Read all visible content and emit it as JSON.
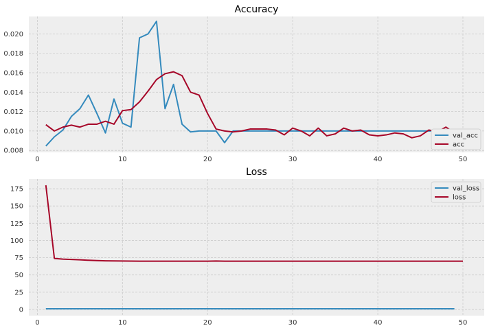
{
  "chart_data": [
    {
      "type": "line",
      "title": "Accuracy",
      "xlabel": "",
      "ylabel": "",
      "xlim": [
        -1,
        52.5
      ],
      "ylim": [
        0.0078,
        0.0218
      ],
      "xticks": [
        0,
        10,
        20,
        30,
        40,
        50
      ],
      "yticks": [
        0.008,
        0.01,
        0.012,
        0.014,
        0.016,
        0.018,
        0.02
      ],
      "ytick_labels": [
        "0.008",
        "0.010",
        "0.012",
        "0.014",
        "0.016",
        "0.018",
        "0.020"
      ],
      "grid": true,
      "legend_position": "lower-right",
      "series": [
        {
          "name": "val_acc",
          "color": "#348abd",
          "x": [
            1,
            2,
            3,
            4,
            5,
            6,
            7,
            8,
            9,
            10,
            11,
            12,
            13,
            14,
            15,
            16,
            17,
            18,
            19,
            20,
            21,
            22,
            23,
            24,
            25,
            26,
            27,
            28,
            29,
            30,
            31,
            32,
            33,
            34,
            35,
            36,
            37,
            38,
            39,
            40,
            41,
            42,
            43,
            44,
            45,
            46,
            47,
            48,
            49
          ],
          "y": [
            0.00845,
            0.0094,
            0.0101,
            0.0115,
            0.0123,
            0.0137,
            0.0118,
            0.0098,
            0.0133,
            0.0108,
            0.0104,
            0.0196,
            0.02,
            0.0213,
            0.0123,
            0.0148,
            0.0107,
            0.0099,
            0.01,
            0.01,
            0.01,
            0.0088,
            0.01,
            0.01,
            0.01,
            0.01,
            0.01,
            0.01,
            0.01,
            0.01,
            0.01,
            0.01,
            0.01,
            0.01,
            0.01,
            0.01,
            0.01,
            0.01,
            0.01,
            0.01,
            0.01,
            0.01,
            0.01,
            0.01,
            0.01,
            0.01,
            0.01,
            0.01,
            0.01
          ]
        },
        {
          "name": "acc",
          "color": "#a60628",
          "x": [
            1,
            2,
            3,
            4,
            5,
            6,
            7,
            8,
            9,
            10,
            11,
            12,
            13,
            14,
            15,
            16,
            17,
            18,
            19,
            20,
            21,
            22,
            23,
            24,
            25,
            26,
            27,
            28,
            29,
            30,
            31,
            32,
            33,
            34,
            35,
            36,
            37,
            38,
            39,
            40,
            41,
            42,
            43,
            44,
            45,
            46,
            47,
            48,
            49,
            50
          ],
          "y": [
            0.01065,
            0.01,
            0.0104,
            0.0106,
            0.0104,
            0.0107,
            0.0107,
            0.011,
            0.0107,
            0.0121,
            0.0122,
            0.013,
            0.0141,
            0.0153,
            0.0159,
            0.0161,
            0.0157,
            0.014,
            0.0137,
            0.0118,
            0.0102,
            0.01,
            0.0099,
            0.01,
            0.0102,
            0.0102,
            0.0102,
            0.0101,
            0.0096,
            0.0103,
            0.01,
            0.0095,
            0.0103,
            0.0095,
            0.0097,
            0.0103,
            0.01,
            0.0101,
            0.0096,
            0.0095,
            0.0096,
            0.0098,
            0.0097,
            0.0093,
            0.0095,
            0.0101,
            0.0099,
            0.0104,
            0.0098,
            0.0099
          ]
        }
      ]
    },
    {
      "type": "line",
      "title": "Loss",
      "xlabel": "",
      "ylabel": "",
      "xlim": [
        -1,
        52.5
      ],
      "ylim": [
        -9,
        189
      ],
      "xticks": [
        0,
        10,
        20,
        30,
        40,
        50
      ],
      "yticks": [
        0,
        25,
        50,
        75,
        100,
        125,
        150,
        175
      ],
      "ytick_labels": [
        "0",
        "25",
        "50",
        "75",
        "100",
        "125",
        "150",
        "175"
      ],
      "grid": true,
      "legend_position": "top-right",
      "series": [
        {
          "name": "val_loss",
          "color": "#348abd",
          "x": [
            1,
            2,
            3,
            4,
            5,
            6,
            7,
            8,
            9,
            10,
            11,
            12,
            13,
            14,
            15,
            16,
            17,
            18,
            19,
            20,
            21,
            22,
            23,
            24,
            25,
            26,
            27,
            28,
            29,
            30,
            31,
            32,
            33,
            34,
            35,
            36,
            37,
            38,
            39,
            40,
            41,
            42,
            43,
            44,
            45,
            46,
            47,
            48,
            49
          ],
          "y": [
            1,
            1,
            1,
            1,
            1,
            1,
            1,
            1,
            1,
            1,
            1,
            1,
            1,
            1,
            1,
            1,
            1,
            1,
            1,
            1,
            1,
            1,
            1,
            1,
            1,
            1,
            1,
            1,
            1,
            1,
            1,
            1,
            1,
            1,
            1,
            1,
            1,
            1,
            1,
            1,
            1,
            1,
            1,
            1,
            1,
            1,
            1,
            1,
            1
          ]
        },
        {
          "name": "loss",
          "color": "#a60628",
          "x": [
            1,
            2,
            3,
            4,
            5,
            6,
            7,
            8,
            9,
            10,
            11,
            12,
            13,
            14,
            15,
            16,
            17,
            18,
            19,
            20,
            21,
            22,
            23,
            24,
            25,
            26,
            27,
            28,
            29,
            30,
            31,
            32,
            33,
            34,
            35,
            36,
            37,
            38,
            39,
            40,
            41,
            42,
            43,
            44,
            45,
            46,
            47,
            48,
            49,
            50
          ],
          "y": [
            180,
            74,
            73,
            72.5,
            72,
            71.3,
            70.8,
            70.5,
            70.3,
            70.2,
            70.1,
            70,
            70,
            70,
            70,
            70,
            70,
            70,
            70,
            70,
            70.2,
            70,
            70,
            70,
            70,
            70,
            70,
            70,
            70,
            70,
            70,
            70,
            70,
            70,
            70,
            70,
            70,
            70,
            70,
            70,
            70,
            70,
            70,
            70,
            70,
            70,
            70,
            70,
            70,
            70
          ]
        }
      ]
    }
  ]
}
